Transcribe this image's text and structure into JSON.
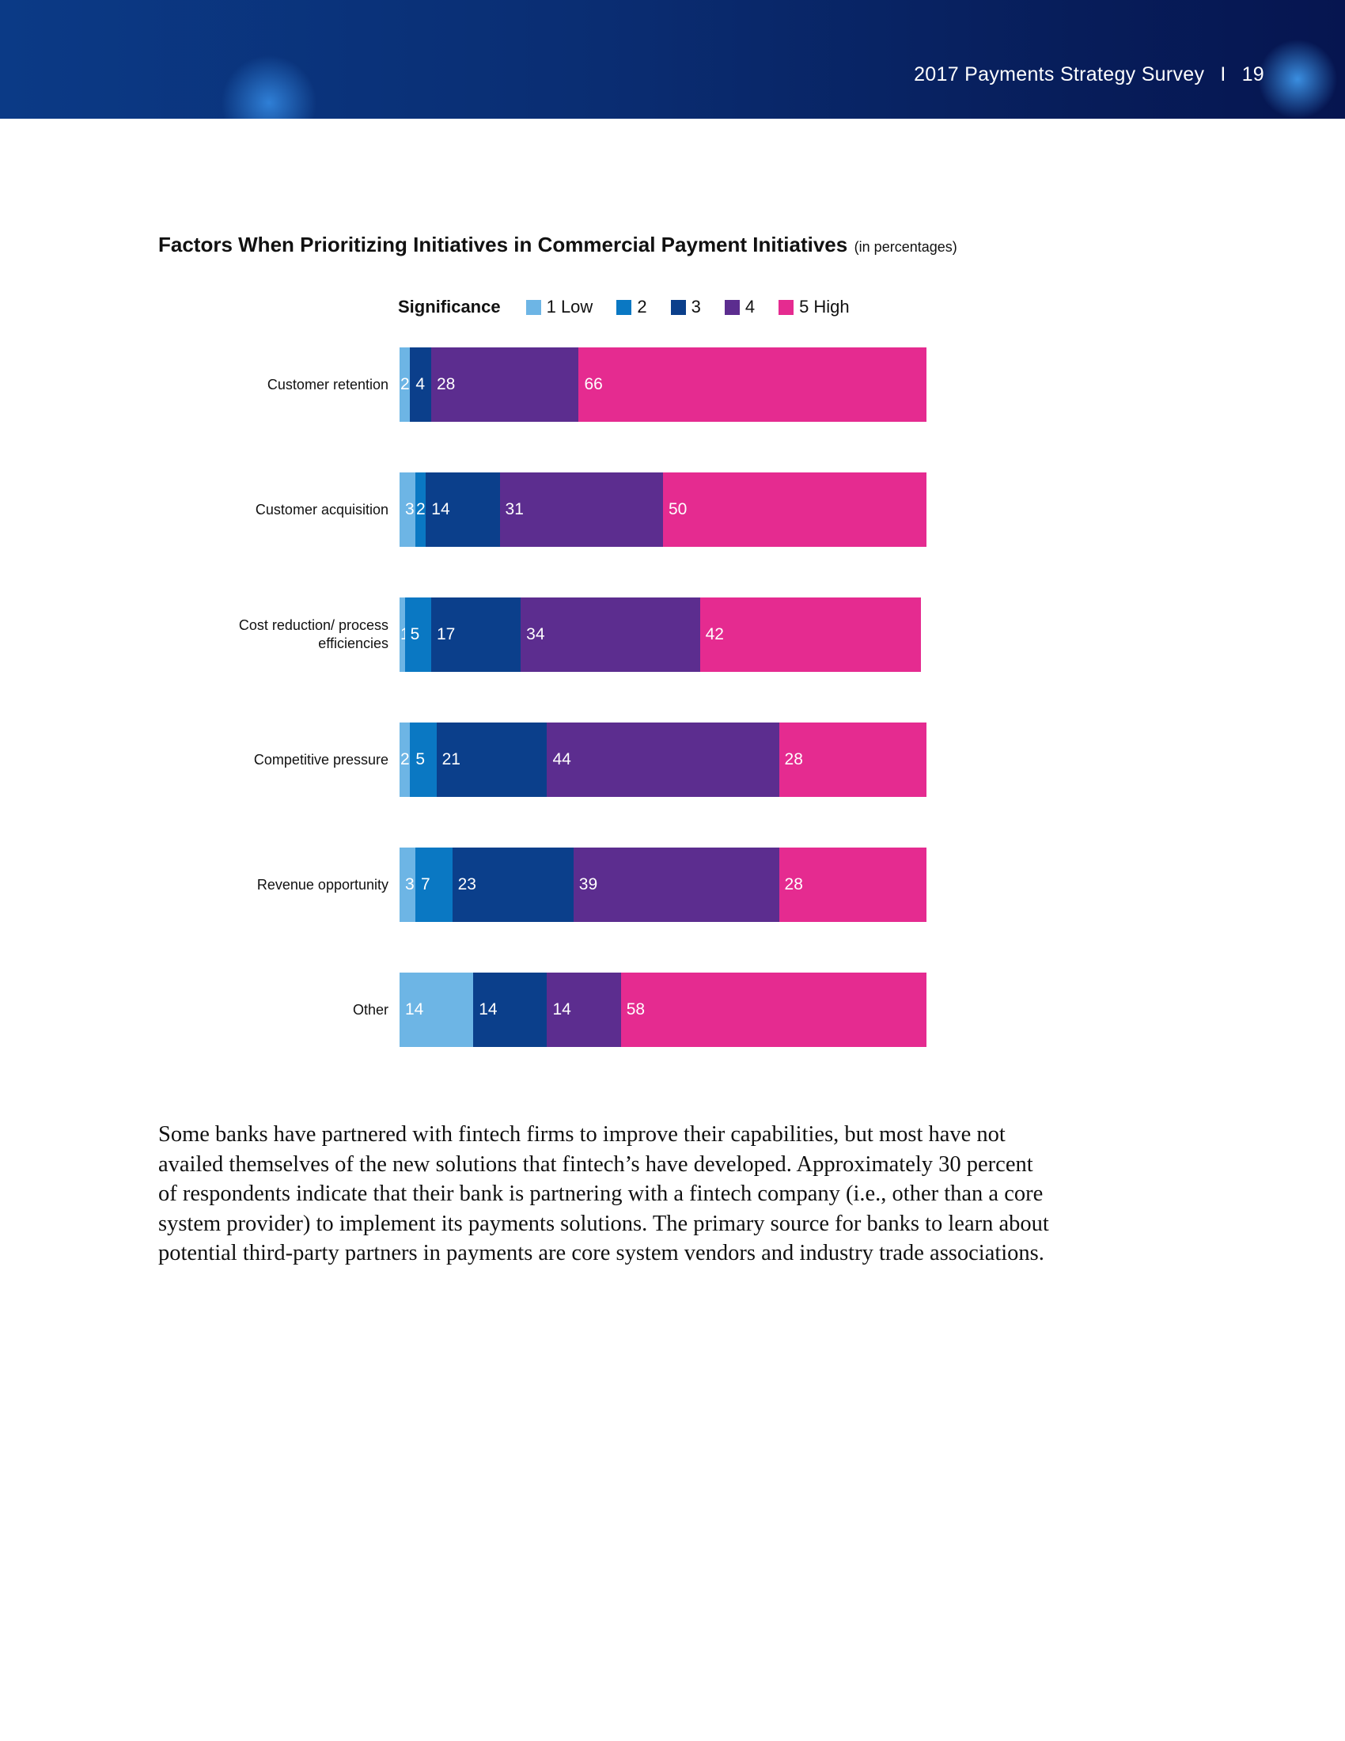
{
  "header": {
    "title": "2017 Payments Strategy Survey",
    "separator": "I",
    "page": "19"
  },
  "chart_data": {
    "type": "stacked-bar-horizontal",
    "title": "Factors When Prioritizing Initiatives in Commercial Payment Initiatives",
    "subtitle": "(in percentages)",
    "legend_title": "Significance",
    "categories": [
      "Customer retention",
      "Customer acquisition",
      "Cost reduction/ process efficiencies",
      "Competitive pressure",
      "Revenue opportunity",
      "Other"
    ],
    "xlim": [
      0,
      100
    ],
    "series": [
      {
        "name": "1 Low",
        "color": "#6db5e5",
        "values": [
          2,
          3,
          1,
          2,
          3,
          14
        ]
      },
      {
        "name": "2",
        "color": "#0a78c3",
        "values": [
          null,
          2,
          5,
          5,
          7,
          null
        ]
      },
      {
        "name": "3",
        "color": "#0b3f8b",
        "values": [
          4,
          14,
          17,
          21,
          23,
          14
        ]
      },
      {
        "name": "4",
        "color": "#5c2d8f",
        "values": [
          28,
          31,
          34,
          44,
          39,
          14
        ]
      },
      {
        "name": "5 High",
        "color": "#e52b90",
        "values": [
          66,
          50,
          42,
          28,
          28,
          58
        ]
      }
    ]
  },
  "paragraph": "Some banks have partnered with fintech firms to improve their capabilities, but most have not availed themselves of the new solutions that fintech’s have developed.  Approximately 30 percent of respondents indicate that their bank is partnering with a fintech company (i.e., other than a core system provider) to implement its payments solutions.  The primary source for banks to learn about potential third-party partners in payments are core system vendors and industry trade associations."
}
